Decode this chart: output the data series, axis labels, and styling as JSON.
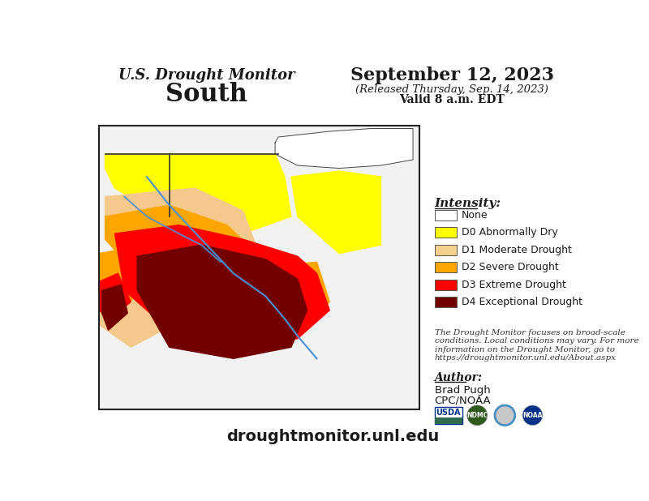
{
  "title_line1": "U.S. Drought Monitor",
  "title_line2": "South",
  "date_line1": "September 12, 2023",
  "date_line2": "(Released Thursday, Sep. 14, 2023)",
  "date_line3": "Valid 8 a.m. EDT",
  "intensity_label": "Intensity:",
  "legend_items": [
    {
      "color": "#FFFFFF",
      "label": "None"
    },
    {
      "color": "#FFFF00",
      "label": "D0 Abnormally Dry"
    },
    {
      "color": "#F5D08C",
      "label": "D1 Moderate Drought"
    },
    {
      "color": "#FFA500",
      "label": "D2 Severe Drought"
    },
    {
      "color": "#FF0000",
      "label": "D3 Extreme Drought"
    },
    {
      "color": "#720000",
      "label": "D4 Exceptional Drought"
    }
  ],
  "disclaimer_text": "The Drought Monitor focuses on broad-scale\nconditions. Local conditions may vary. For more\ninformation on the Drought Monitor, go to\nhttps://droughtmonitor.unl.edu/About.aspx",
  "author_label": "Author:",
  "author_name": "Brad Pugh",
  "author_org": "CPC/NOAA",
  "website": "droughtmonitor.unl.edu",
  "bg_color": "#FFFFFF"
}
